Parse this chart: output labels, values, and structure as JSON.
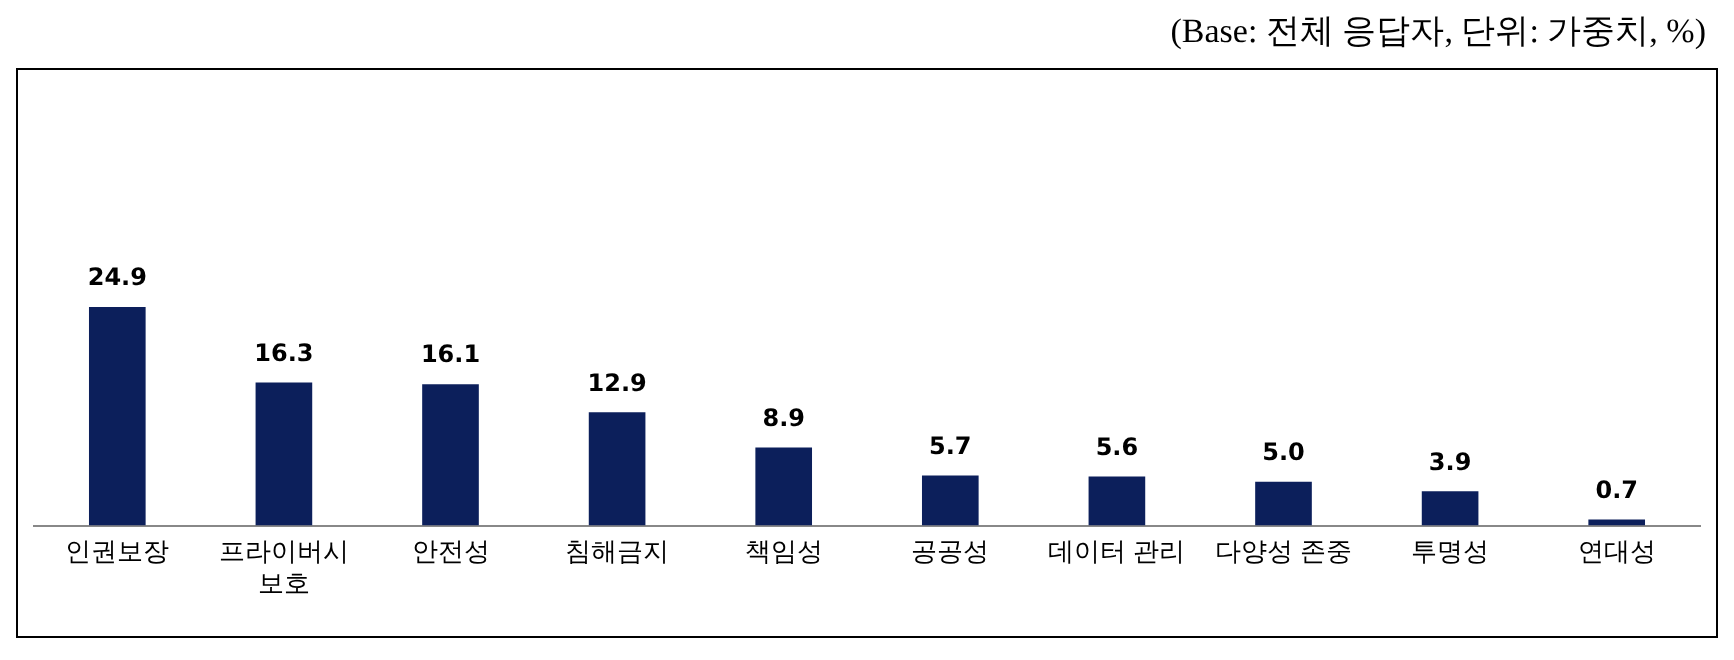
{
  "chart_data": {
    "type": "bar",
    "annotations": [
      "(Base: 전체 응답자, 단위: 가중치, %)"
    ],
    "categories": [
      "인권보장",
      "프라이버시\n보호",
      "안전성",
      "침해금지",
      "책임성",
      "공공성",
      "데이터 관리",
      "다양성 존중",
      "투명성",
      "연대성"
    ],
    "values": [
      24.9,
      16.3,
      16.1,
      12.9,
      8.9,
      5.7,
      5.6,
      5.0,
      3.9,
      0.7
    ],
    "value_labels": [
      "24.9",
      "16.3",
      "16.1",
      "12.9",
      "8.9",
      "5.7",
      "5.6",
      "5.0",
      "3.9",
      "0.7"
    ],
    "color": "#0c1f5b"
  }
}
